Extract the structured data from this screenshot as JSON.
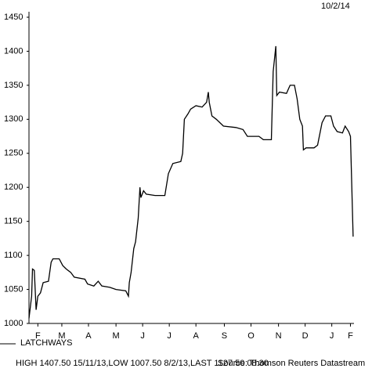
{
  "chart_data": {
    "type": "line",
    "date": "10/2/14",
    "footer": "HIGH 1407.50 15/11/13,LOW 1007.50 8/2/13,LAST 1127.50 08:30",
    "source": "Source: Thomson Reuters Datastream",
    "xlim": [
      0,
      366
    ],
    "xticks": [
      {
        "value": 10,
        "label": "F"
      },
      {
        "value": 37,
        "label": "M"
      },
      {
        "value": 67,
        "label": "A"
      },
      {
        "value": 98,
        "label": "M"
      },
      {
        "value": 128,
        "label": "J"
      },
      {
        "value": 158,
        "label": "J"
      },
      {
        "value": 188,
        "label": "A"
      },
      {
        "value": 220,
        "label": "S"
      },
      {
        "value": 250,
        "label": "O"
      },
      {
        "value": 281,
        "label": "N"
      },
      {
        "value": 311,
        "label": "D"
      },
      {
        "value": 341,
        "label": "J"
      },
      {
        "value": 362,
        "label": "F"
      }
    ],
    "ylim": [
      1000,
      1450
    ],
    "yticks": [
      1000,
      1050,
      1100,
      1150,
      1200,
      1250,
      1300,
      1350,
      1400,
      1450
    ],
    "series": [
      {
        "name": "LATCHWAYS",
        "color": "#000000",
        "x": [
          0,
          3,
          4,
          6,
          8,
          10,
          13,
          16,
          22,
          25,
          27,
          34,
          38,
          42,
          47,
          51,
          63,
          66,
          73,
          78,
          82,
          91,
          98,
          109,
          112,
          113,
          115,
          118,
          120,
          123,
          125,
          126,
          129,
          132,
          142,
          153,
          157,
          162,
          171,
          173,
          175,
          179,
          182,
          188,
          195,
          200,
          202,
          203,
          206,
          211,
          219,
          233,
          241,
          246,
          259,
          264,
          273,
          275,
          278,
          279,
          282,
          290,
          294,
          299,
          302,
          305,
          308,
          309,
          312,
          321,
          325,
          330,
          334,
          340,
          343,
          347,
          353,
          356,
          360,
          362,
          365
        ],
        "values": [
          1007.5,
          1040,
          1080,
          1078,
          1020,
          1040,
          1045,
          1060,
          1062,
          1090,
          1095,
          1095,
          1085,
          1080,
          1075,
          1068,
          1065,
          1058,
          1055,
          1062,
          1055,
          1053,
          1050,
          1048,
          1040,
          1060,
          1075,
          1110,
          1120,
          1155,
          1200,
          1185,
          1195,
          1190,
          1188,
          1188,
          1220,
          1235,
          1238,
          1250,
          1300,
          1308,
          1315,
          1320,
          1318,
          1325,
          1340,
          1325,
          1305,
          1300,
          1290,
          1288,
          1285,
          1275,
          1275,
          1270,
          1270,
          1370,
          1407.5,
          1335,
          1340,
          1338,
          1350,
          1350,
          1330,
          1300,
          1290,
          1255,
          1258,
          1258,
          1262,
          1295,
          1305,
          1305,
          1290,
          1282,
          1280,
          1290,
          1282,
          1275,
          1127.5
        ]
      }
    ]
  }
}
